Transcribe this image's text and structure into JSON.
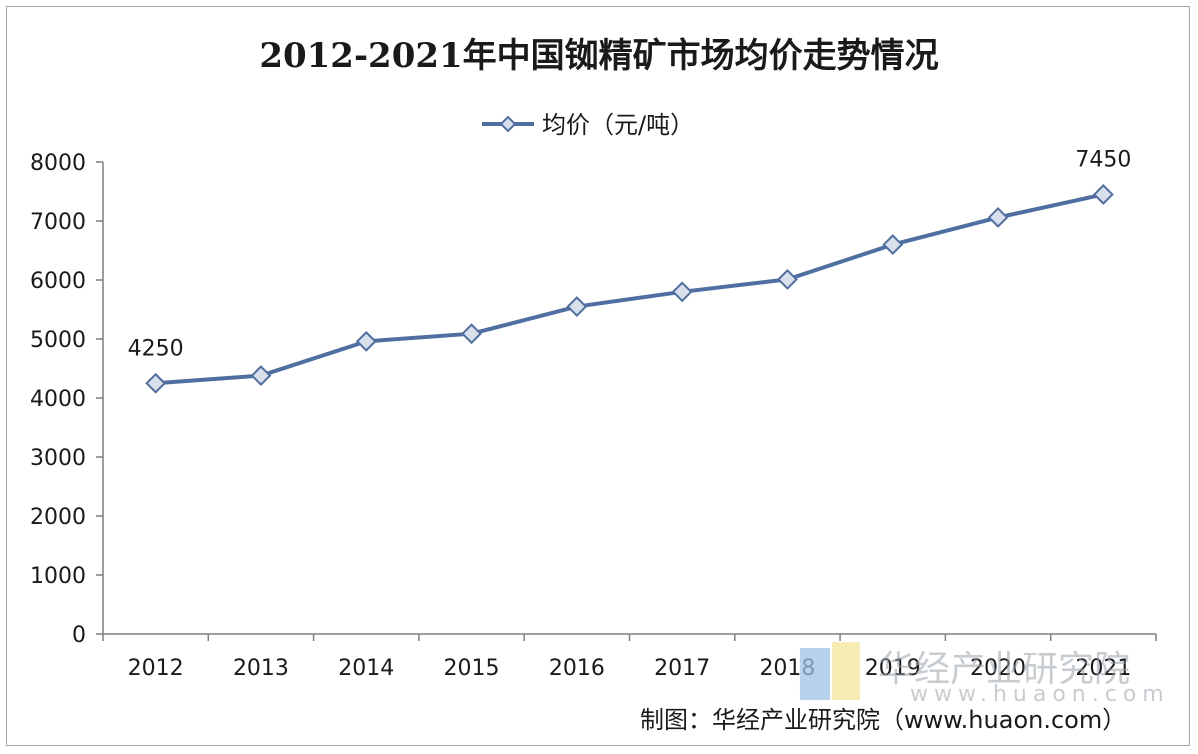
{
  "title": "2012-2021年中国铷精矿市场均价走势情况",
  "source": "制图：华经产业研究院（www.huaon.com）",
  "watermark": {
    "name": "华经产业研究院",
    "url": "www.huaon.com"
  },
  "colors": {
    "line": "#4f6fa3",
    "marker_fill": "#d9e0ec",
    "axis": "#7f7f7f",
    "text": "#1a1a1a"
  },
  "chart_data": {
    "type": "line",
    "categories": [
      "2012",
      "2013",
      "2014",
      "2015",
      "2016",
      "2017",
      "2018",
      "2019",
      "2020",
      "2021"
    ],
    "series": [
      {
        "name": "均价（元/吨）",
        "values": [
          4250,
          4380,
          4960,
          5090,
          5550,
          5800,
          6010,
          6600,
          7060,
          7450
        ]
      }
    ],
    "data_labels": [
      {
        "index": 0,
        "text": "4250"
      },
      {
        "index": 9,
        "text": "7450"
      }
    ],
    "y_ticks": [
      "0",
      "1000",
      "2000",
      "3000",
      "4000",
      "5000",
      "6000",
      "7000",
      "8000"
    ],
    "ylim": [
      0,
      8000
    ],
    "grid": false,
    "legend_position": "top-center"
  }
}
